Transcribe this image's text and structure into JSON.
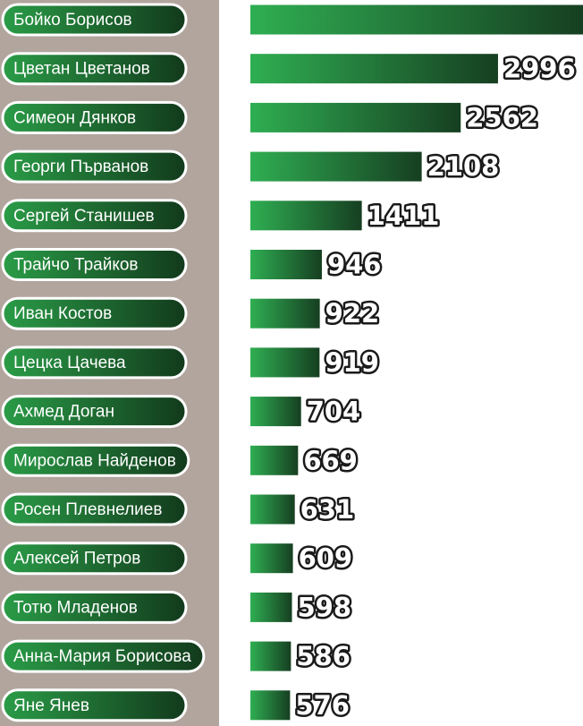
{
  "chart_data": {
    "type": "bar",
    "orientation": "horizontal",
    "categories": [
      "Бойко Борисов",
      "Цветан Цветанов",
      "Симеон Дянков",
      "Георги Първанов",
      "Сергей Станишев",
      "Трайчо Трайков",
      "Иван Костов",
      "Цецка Цачева",
      "Ахмед Доган",
      "Мирослав Найденов",
      "Росен Плевнелиев",
      "Алексей Петров",
      "Тотю Младенов",
      "Анна-Мария Борисова",
      "Яне Янев"
    ],
    "values": [
      3985,
      2996,
      2562,
      2108,
      1411,
      946,
      922,
      919,
      704,
      669,
      631,
      609,
      598,
      586,
      576
    ],
    "color": "#1f7a36",
    "xlim": [
      114,
      3985
    ]
  }
}
